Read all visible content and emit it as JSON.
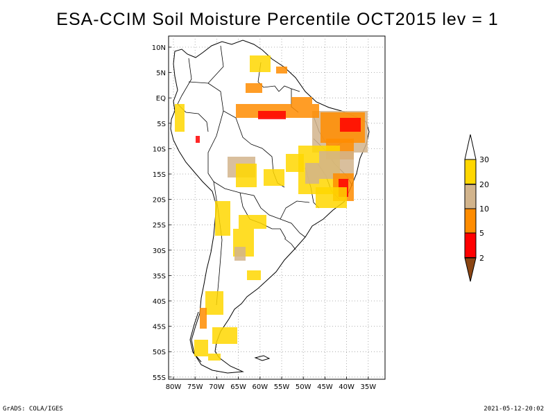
{
  "title": "ESA-CCIM Soil Moisture Percentile OCT2015 lev = 1",
  "lat_labels": [
    "10N",
    "5N",
    "EQ",
    "5S",
    "10S",
    "15S",
    "20S",
    "25S",
    "30S",
    "35S",
    "40S",
    "45S",
    "50S",
    "55S"
  ],
  "lon_labels": [
    "80W",
    "75W",
    "70W",
    "65W",
    "60W",
    "55W",
    "50W",
    "45W",
    "40W",
    "35W"
  ],
  "colorbar": {
    "labels": [
      "2",
      "5",
      "10",
      "20",
      "30"
    ],
    "colors": {
      "below2": "#8b4513",
      "c2_5": "#ff0000",
      "c5_10": "#ff8c00",
      "c10_20": "#d2b48c",
      "c20_30": "#ffd700",
      "above30": "#ffffff"
    }
  },
  "map_colors": {
    "land_outline": "#000000",
    "grid": "#999999"
  },
  "footer": {
    "credit": "GrADS: COLA/IGES",
    "timestamp": "2021-05-12-20:02"
  }
}
